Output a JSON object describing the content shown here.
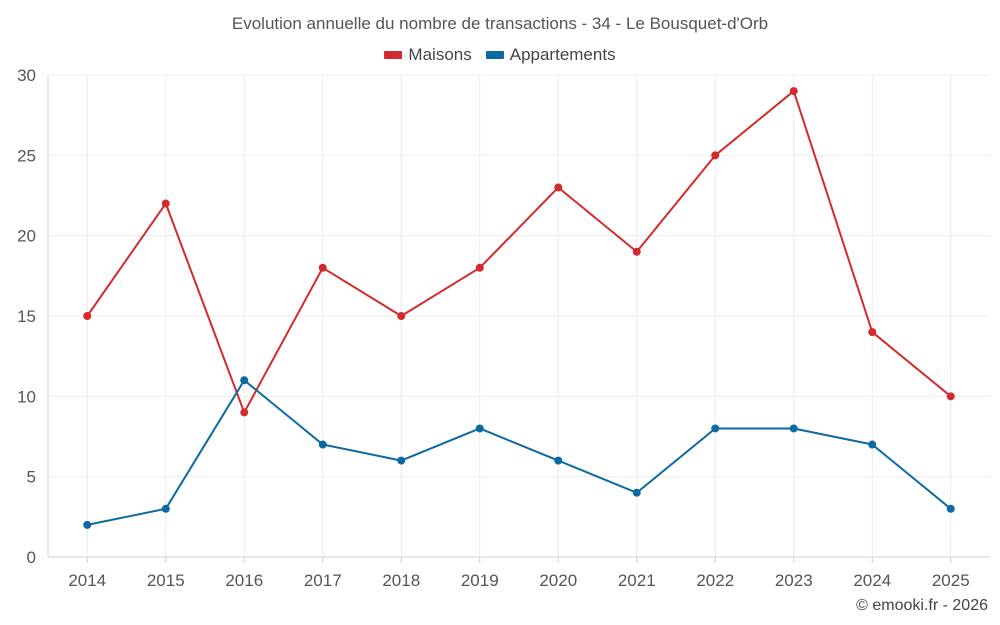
{
  "chart_data": {
    "type": "line",
    "title": "Evolution annuelle du nombre de transactions - 34 - Le Bousquet-d'Orb",
    "xlabel": "",
    "ylabel": "",
    "categories": [
      "2014",
      "2015",
      "2016",
      "2017",
      "2018",
      "2019",
      "2020",
      "2021",
      "2022",
      "2023",
      "2024",
      "2025"
    ],
    "ylim": [
      0,
      30
    ],
    "yticks": [
      0,
      5,
      10,
      15,
      20,
      25,
      30
    ],
    "grid": true,
    "legend_position": "top-center",
    "series": [
      {
        "name": "Maisons",
        "color": "#d32b2b",
        "values": [
          15,
          22,
          9,
          18,
          15,
          18,
          23,
          19,
          25,
          29,
          14,
          10
        ]
      },
      {
        "name": "Appartements",
        "color": "#0a6aa1",
        "values": [
          2,
          3,
          11,
          7,
          6,
          8,
          6,
          4,
          8,
          8,
          7,
          3
        ]
      }
    ]
  },
  "credit": "© emooki.fr - 2026"
}
